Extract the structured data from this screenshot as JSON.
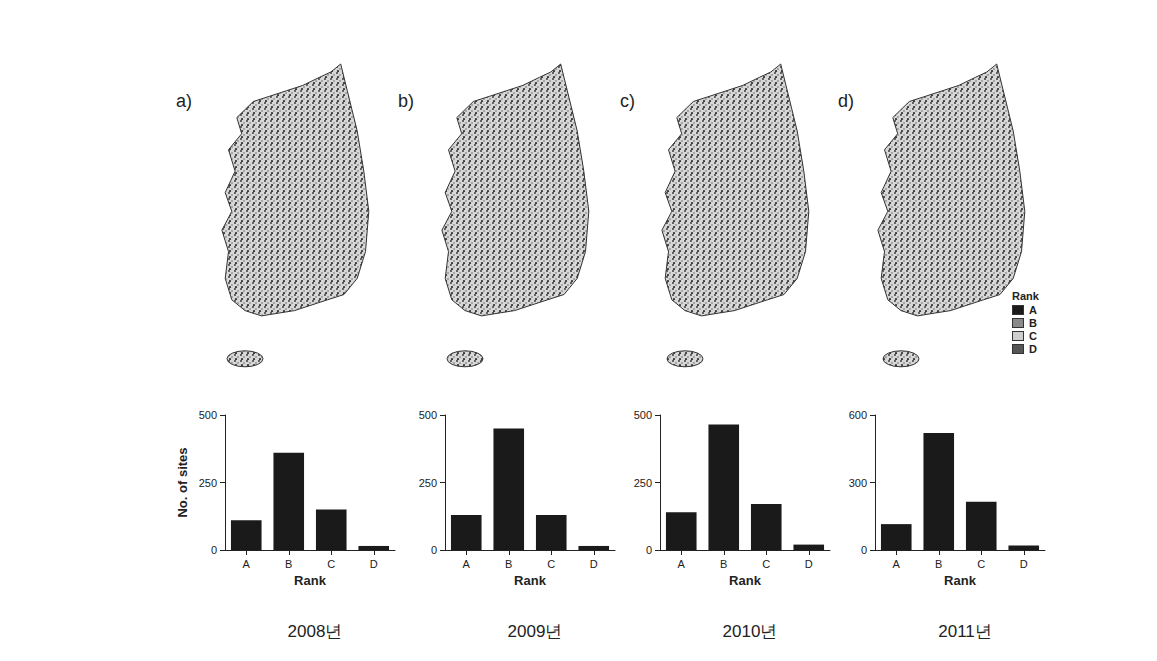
{
  "chart_data": [
    {
      "type": "bar",
      "title": "2008년",
      "annotations": [
        "a)"
      ],
      "xlabel": "Rank",
      "ylabel": "No. of sites",
      "categories": [
        "A",
        "B",
        "C",
        "D"
      ],
      "values": [
        110,
        360,
        150,
        15
      ],
      "color": "#1a1a1a",
      "ylim": [
        0,
        500
      ],
      "yticks": [
        0,
        250,
        500
      ],
      "grid": false
    },
    {
      "type": "bar",
      "title": "2009년",
      "annotations": [
        "b)"
      ],
      "xlabel": "Rank",
      "categories": [
        "A",
        "B",
        "C",
        "D"
      ],
      "values": [
        130,
        450,
        130,
        15
      ],
      "color": "#1a1a1a",
      "ylim": [
        0,
        500
      ],
      "yticks": [
        0,
        250,
        500
      ],
      "grid": false
    },
    {
      "type": "bar",
      "title": "2010년",
      "annotations": [
        "c)"
      ],
      "xlabel": "Rank",
      "categories": [
        "A",
        "B",
        "C",
        "D"
      ],
      "values": [
        140,
        465,
        170,
        20
      ],
      "color": "#1a1a1a",
      "ylim": [
        0,
        500
      ],
      "yticks": [
        0,
        250,
        500
      ],
      "grid": false
    },
    {
      "type": "bar",
      "title": "2011년",
      "annotations": [
        "d)"
      ],
      "xlabel": "Rank",
      "categories": [
        "A",
        "B",
        "C",
        "D"
      ],
      "values": [
        115,
        520,
        215,
        20
      ],
      "color": "#1a1a1a",
      "ylim": [
        0,
        600
      ],
      "yticks": [
        0,
        300,
        600
      ],
      "grid": false
    }
  ],
  "map_legend": {
    "title": "Rank",
    "items": [
      "A",
      "B",
      "C",
      "D"
    ],
    "colors": [
      "#1a1a1a",
      "#8a8a8a",
      "#cfcfcf",
      "#555555"
    ]
  }
}
